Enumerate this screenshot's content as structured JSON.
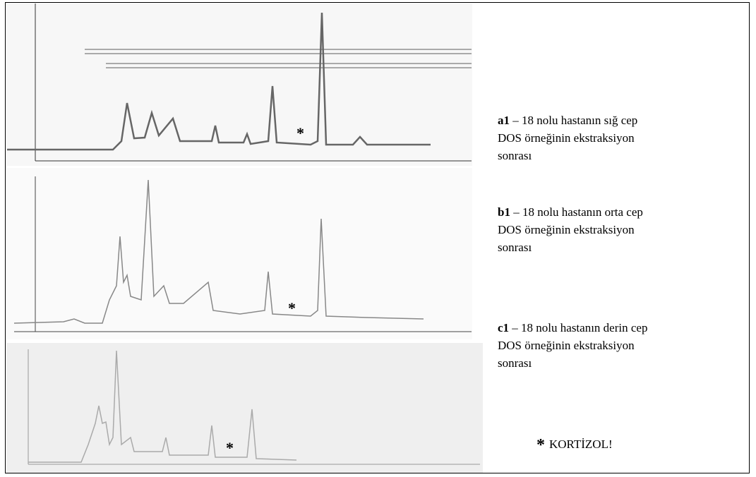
{
  "panels": [
    {
      "id": "a1",
      "marker": "*"
    },
    {
      "id": "b1",
      "marker": "*"
    },
    {
      "id": "c1",
      "marker": "*"
    }
  ],
  "captions": [
    {
      "label": "a1",
      "lines": [
        "– 18 nolu hastanın sığ cep",
        "DOS örneğinin ekstraksiyon",
        "sonrası"
      ]
    },
    {
      "label": "b1",
      "lines": [
        "– 18 nolu hastanın orta cep",
        "DOS örneğinin ekstraksiyon",
        "sonrası"
      ]
    },
    {
      "label": "c1",
      "lines": [
        "– 18 nolu hastanın derin cep",
        "DOS örneğinin ekstraksiyon",
        "sonrası"
      ]
    }
  ],
  "note": {
    "symbol": "*",
    "text": "KORTİZOL!"
  }
}
